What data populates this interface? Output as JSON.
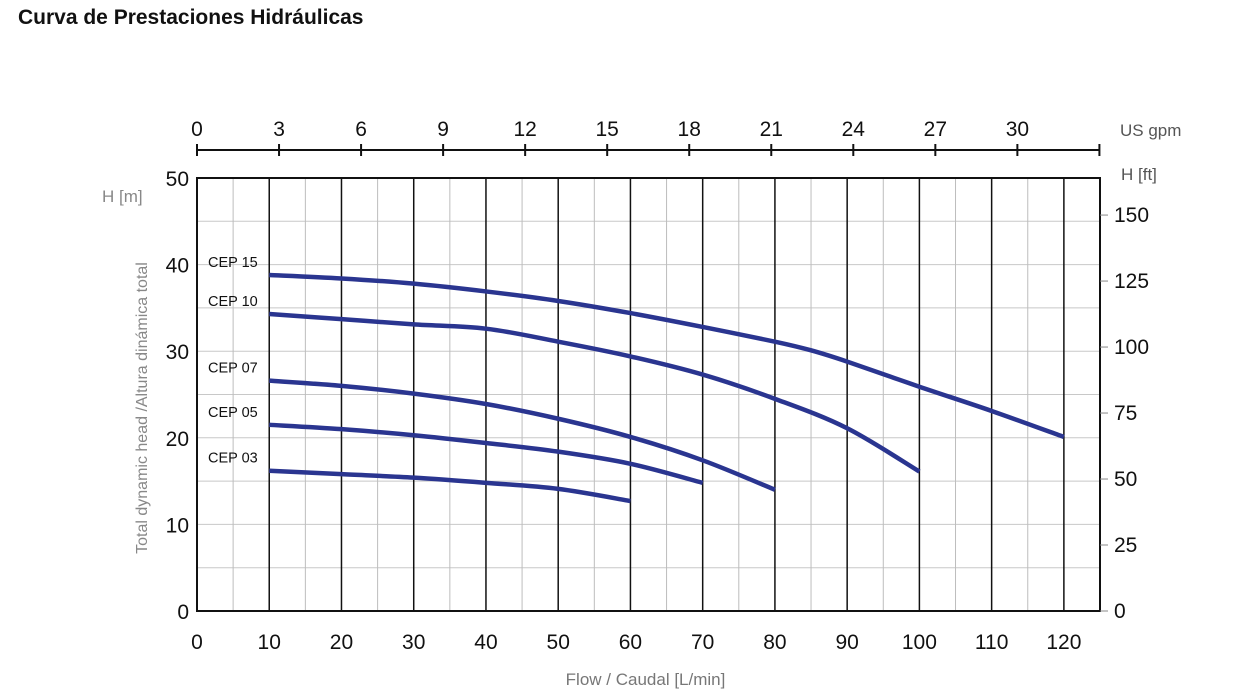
{
  "title": "Curva de Prestaciones Hidráulicas",
  "chart_data": {
    "type": "line",
    "xlabel": "Flow / Caudal [L/min]",
    "ylabel": "Total dynamic head /Altura dinámica total",
    "y_unit_label": "H [m]",
    "y2_unit_label": "H [ft]",
    "x2_unit_label": "US gpm",
    "xlim": [
      0,
      125
    ],
    "ylim": [
      0,
      50
    ],
    "x_ticks": [
      0,
      10,
      20,
      30,
      40,
      50,
      60,
      70,
      80,
      90,
      100,
      110,
      120
    ],
    "y_ticks": [
      0,
      10,
      20,
      30,
      40,
      50
    ],
    "y2_ticks": [
      0,
      25,
      50,
      75,
      100,
      125,
      150
    ],
    "x2_ticks": [
      0,
      3,
      6,
      9,
      12,
      15,
      18,
      21,
      24,
      27,
      30
    ],
    "grid": true,
    "line_color": "#2a3590",
    "series": [
      {
        "name": "CEP 15",
        "x": [
          10,
          20,
          30,
          40,
          50,
          60,
          70,
          80,
          85,
          90,
          100,
          110,
          120
        ],
        "y": [
          38.8,
          38.4,
          37.8,
          36.9,
          35.8,
          34.4,
          32.8,
          31.1,
          30.1,
          28.8,
          25.9,
          23.1,
          20.1
        ]
      },
      {
        "name": "CEP 10",
        "x": [
          10,
          20,
          30,
          40,
          50,
          60,
          70,
          80,
          90,
          100
        ],
        "y": [
          34.3,
          33.7,
          33.1,
          32.6,
          31.1,
          29.4,
          27.3,
          24.5,
          21.1,
          16.1
        ]
      },
      {
        "name": "CEP 07",
        "x": [
          10,
          20,
          30,
          40,
          50,
          60,
          70,
          80
        ],
        "y": [
          26.6,
          26.0,
          25.1,
          23.9,
          22.2,
          20.1,
          17.4,
          14.0
        ]
      },
      {
        "name": "CEP 05",
        "x": [
          10,
          20,
          30,
          40,
          50,
          60,
          70
        ],
        "y": [
          21.5,
          21.0,
          20.3,
          19.4,
          18.4,
          17.0,
          14.8
        ]
      },
      {
        "name": "CEP 03",
        "x": [
          10,
          20,
          30,
          40,
          50,
          60
        ],
        "y": [
          16.2,
          15.8,
          15.4,
          14.8,
          14.1,
          12.7
        ]
      }
    ]
  }
}
